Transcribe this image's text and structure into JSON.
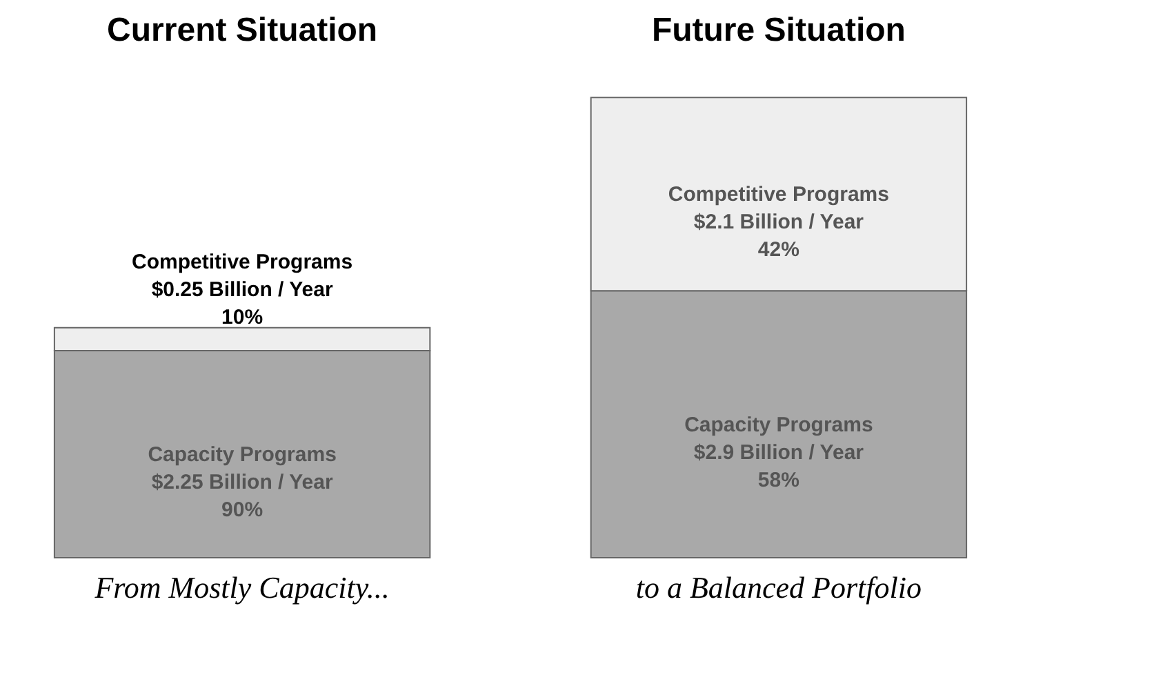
{
  "chart_data": {
    "type": "bar",
    "stacked": true,
    "categories": [
      "Current Situation",
      "Future Situation"
    ],
    "annotations": [
      "From Mostly Capacity...",
      "to a Balanced Portfolio"
    ],
    "series": [
      {
        "name": "Capacity Programs",
        "color": "#a9a9a9",
        "values": [
          2.25,
          2.9
        ],
        "value_labels": [
          "$2.25 Billion / Year\n90%",
          "$2.9 Billion / Year\n58%"
        ]
      },
      {
        "name": "Competitive Programs",
        "color": "#eeeeee",
        "values": [
          0.25,
          2.1
        ],
        "value_labels": [
          "$0.25 Billion / Year\n10%",
          "$2.1 Billion / Year\n42%"
        ]
      }
    ]
  }
}
